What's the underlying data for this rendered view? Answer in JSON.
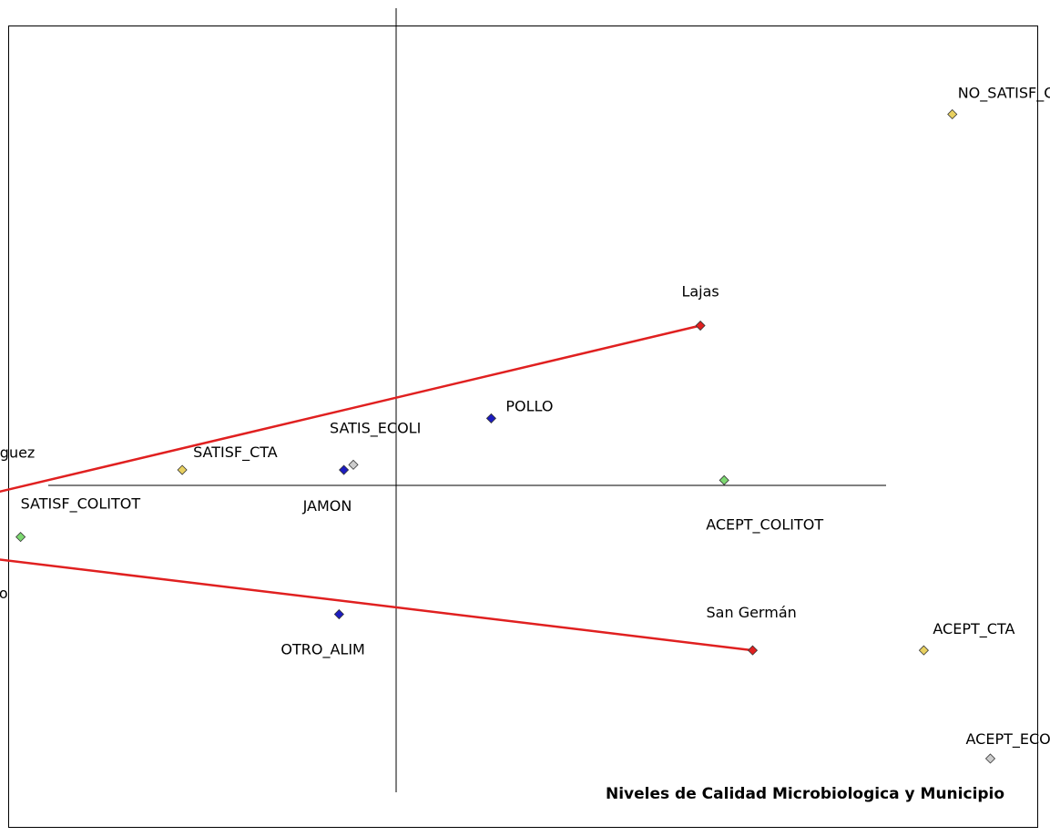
{
  "chart_data": {
    "type": "scatter",
    "title": "Niveles de Calidad Microbiologica y Municipio",
    "xlabel": "",
    "ylabel": "",
    "grid": false,
    "legend": "none",
    "xlim": [
      -1.0,
      1.3
    ],
    "ylim": [
      -0.65,
      1.0
    ],
    "points": [
      {
        "label": "NO_SATISF_CTA",
        "x": 1.17,
        "y": 0.72,
        "color": "#e8d060"
      },
      {
        "label": "Lajas",
        "x": 0.64,
        "y": 0.31,
        "color": "#e02020"
      },
      {
        "label": "POLLO",
        "x": 0.2,
        "y": 0.13,
        "color": "#1c1cc0"
      },
      {
        "label": "SATIS_ECOLI",
        "x": -0.09,
        "y": 0.04,
        "color": "#cccccc"
      },
      {
        "label": "SATISF_CTA",
        "x": -0.45,
        "y": 0.03,
        "color": "#e8d060"
      },
      {
        "label": "JAMON",
        "x": -0.11,
        "y": 0.03,
        "color": "#1c1cc0"
      },
      {
        "label": "ACEPT_COLITOT",
        "x": 0.69,
        "y": 0.01,
        "color": "#7cd870"
      },
      {
        "label": "Mayaguez",
        "x": -0.87,
        "y": -0.02,
        "color": "#e02020"
      },
      {
        "label": "SATISF_COLITOT",
        "x": -0.79,
        "y": -0.1,
        "color": "#7cd870"
      },
      {
        "label": "Anasco",
        "x": -0.87,
        "y": -0.14,
        "color": "#e02020"
      },
      {
        "label": "OTRO_ALIM",
        "x": -0.12,
        "y": -0.25,
        "color": "#1c1cc0"
      },
      {
        "label": "San Germán",
        "x": 0.75,
        "y": -0.32,
        "color": "#e02020"
      },
      {
        "label": "ACEPT_CTA",
        "x": 1.11,
        "y": -0.32,
        "color": "#e8d060"
      },
      {
        "label": "ACEPT_ECOLI",
        "x": 1.25,
        "y": -0.53,
        "color": "#cccccc"
      }
    ],
    "series": [
      {
        "name": "",
        "color": "#e02020",
        "path": [
          "Lajas",
          "Mayaguez",
          "Anasco",
          "San Germán"
        ]
      }
    ]
  }
}
